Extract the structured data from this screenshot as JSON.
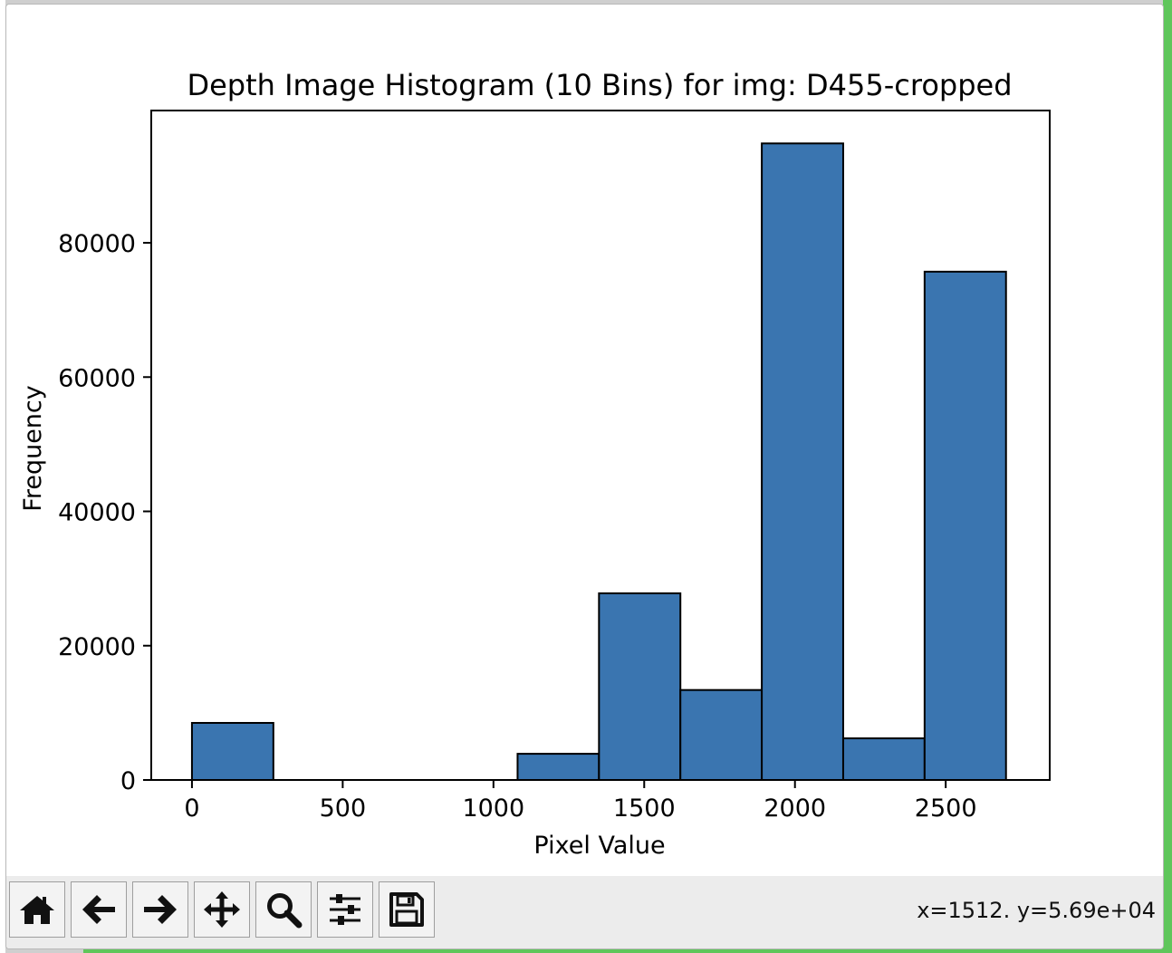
{
  "chart_data": {
    "type": "bar",
    "title": "Depth Image Histogram (10 Bins) for img: D455-cropped",
    "xlabel": "Pixel Value",
    "ylabel": "Frequency",
    "xlim": [
      -135,
      2845
    ],
    "ylim": [
      0,
      99700
    ],
    "xticks": [
      0,
      500,
      1000,
      1500,
      2000,
      2500
    ],
    "yticks": [
      0,
      20000,
      40000,
      60000,
      80000
    ],
    "bin_edges": [
      0,
      270,
      540,
      810,
      1080,
      1350,
      1620,
      1890,
      2160,
      2430,
      2700
    ],
    "values": [
      8500,
      0,
      0,
      0,
      3900,
      27800,
      13400,
      94800,
      6200,
      75700
    ],
    "bar_color": "#3a75b0",
    "edge_color": "#000000",
    "grid": false
  },
  "toolbar": {
    "buttons": [
      {
        "name": "home-button",
        "icon": "home-icon"
      },
      {
        "name": "back-button",
        "icon": "arrow-left-icon"
      },
      {
        "name": "forward-button",
        "icon": "arrow-right-icon"
      },
      {
        "name": "pan-button",
        "icon": "move-icon"
      },
      {
        "name": "zoom-button",
        "icon": "magnifier-icon"
      },
      {
        "name": "configure-subplots-button",
        "icon": "sliders-icon"
      },
      {
        "name": "save-button",
        "icon": "floppy-icon"
      }
    ],
    "coords": "x=1512. y=5.69e+04"
  }
}
